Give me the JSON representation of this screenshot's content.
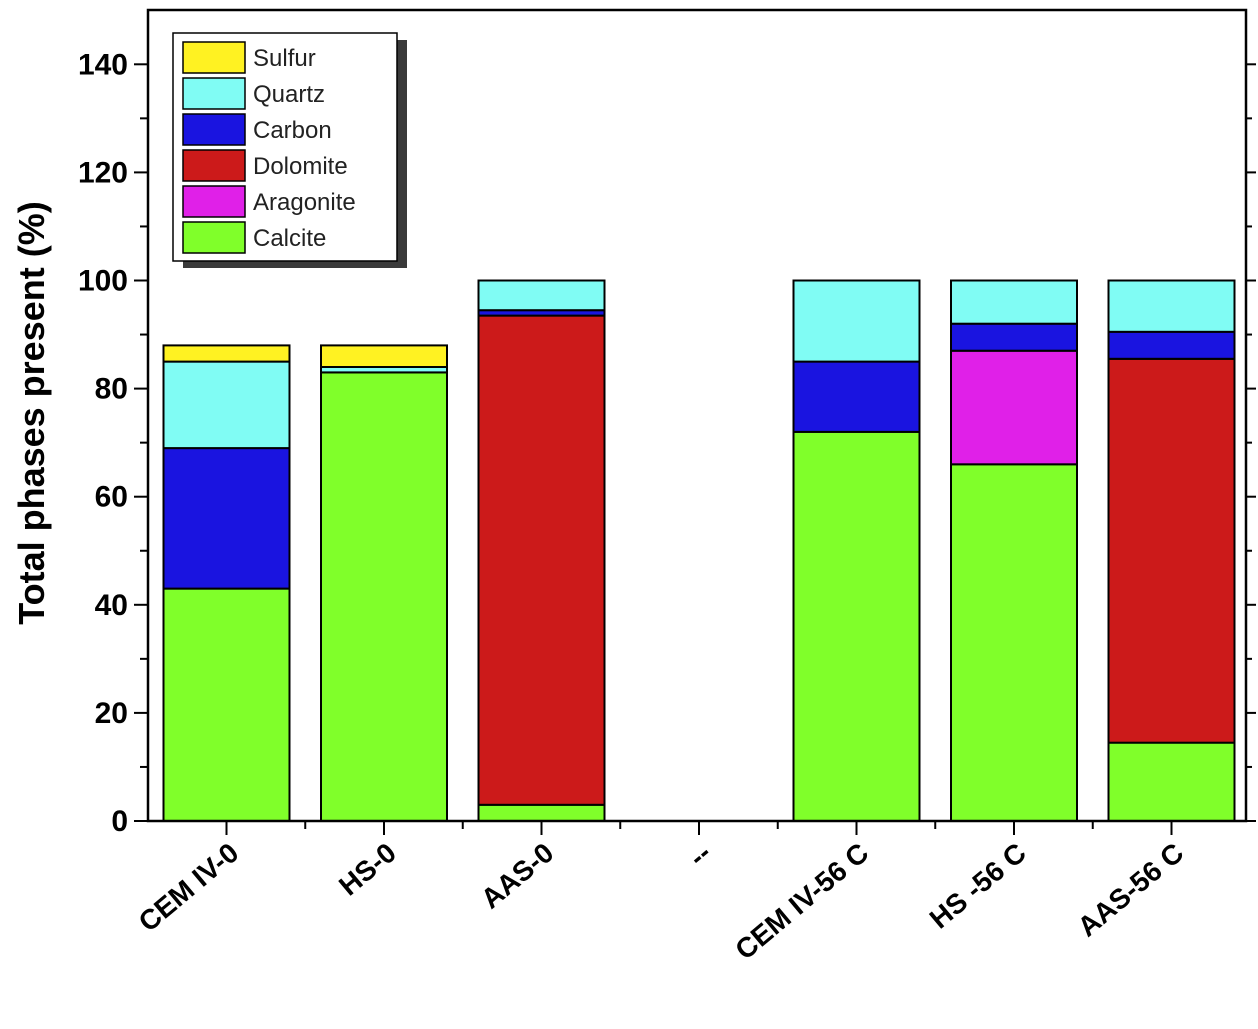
{
  "chart_data": {
    "type": "bar",
    "stacked": true,
    "categories": [
      "CEM IV-0",
      "HS-0",
      "AAS-0",
      "--",
      "CEM IV-56 C",
      "HS -56 C",
      "AAS-56 C"
    ],
    "ylabel": "Total phases present (%)",
    "xlabel": "",
    "ylim": [
      0,
      150
    ],
    "yticks": [
      0,
      20,
      40,
      60,
      80,
      100,
      120,
      140
    ],
    "legend_position": "top-left",
    "series": [
      {
        "name": "Calcite",
        "color": "#80ff2a",
        "values": [
          43,
          83,
          3,
          0,
          72,
          66,
          14.5
        ]
      },
      {
        "name": "Aragonite",
        "color": "#e020e8",
        "values": [
          0,
          0,
          0,
          0,
          0,
          21,
          0
        ]
      },
      {
        "name": "Dolomite",
        "color": "#cc1a1a",
        "values": [
          0,
          0,
          90.5,
          0,
          0,
          0,
          71
        ]
      },
      {
        "name": "Carbon",
        "color": "#1a14e0",
        "values": [
          26,
          0,
          1,
          0,
          13,
          5,
          5
        ]
      },
      {
        "name": "Quartz",
        "color": "#80fcf4",
        "values": [
          16,
          1,
          5.5,
          0,
          15,
          8,
          9.5
        ]
      },
      {
        "name": "Sulfur",
        "color": "#fff222",
        "values": [
          3,
          4,
          0,
          0,
          0,
          0,
          0
        ]
      }
    ],
    "legend_order": [
      "Sulfur",
      "Quartz",
      "Carbon",
      "Dolomite",
      "Aragonite",
      "Calcite"
    ]
  }
}
